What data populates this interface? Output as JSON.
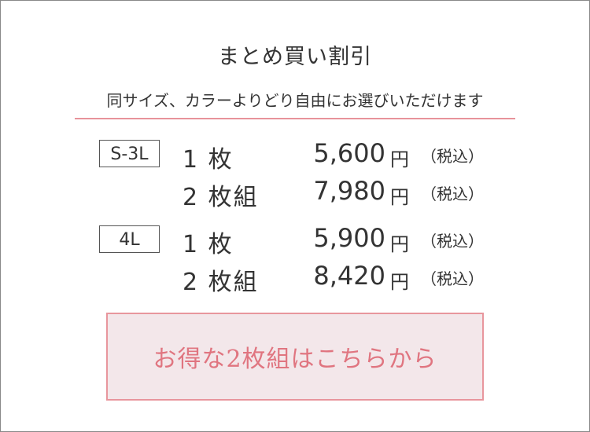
{
  "title": "まとめ買い割引",
  "subtitle": "同サイズ、カラーよりどり自由にお選びいただけます",
  "groups": [
    {
      "size": "S-3L",
      "rows": [
        {
          "qty": "1 枚",
          "price": "5,600",
          "yen": "円",
          "tax": "（税込）"
        },
        {
          "qty": "2 枚組",
          "price": "7,980",
          "yen": "円",
          "tax": "（税込）"
        }
      ]
    },
    {
      "size": "4L",
      "rows": [
        {
          "qty": "1 枚",
          "price": "5,900",
          "yen": "円",
          "tax": "（税込）"
        },
        {
          "qty": "2 枚組",
          "price": "8,420",
          "yen": "円",
          "tax": "（税込）"
        }
      ]
    }
  ],
  "cta_label": "お得な2枚組はこちらから",
  "colors": {
    "accent": "#e07580",
    "button_bg": "#f3e7ea",
    "rule": "#e8939b"
  }
}
